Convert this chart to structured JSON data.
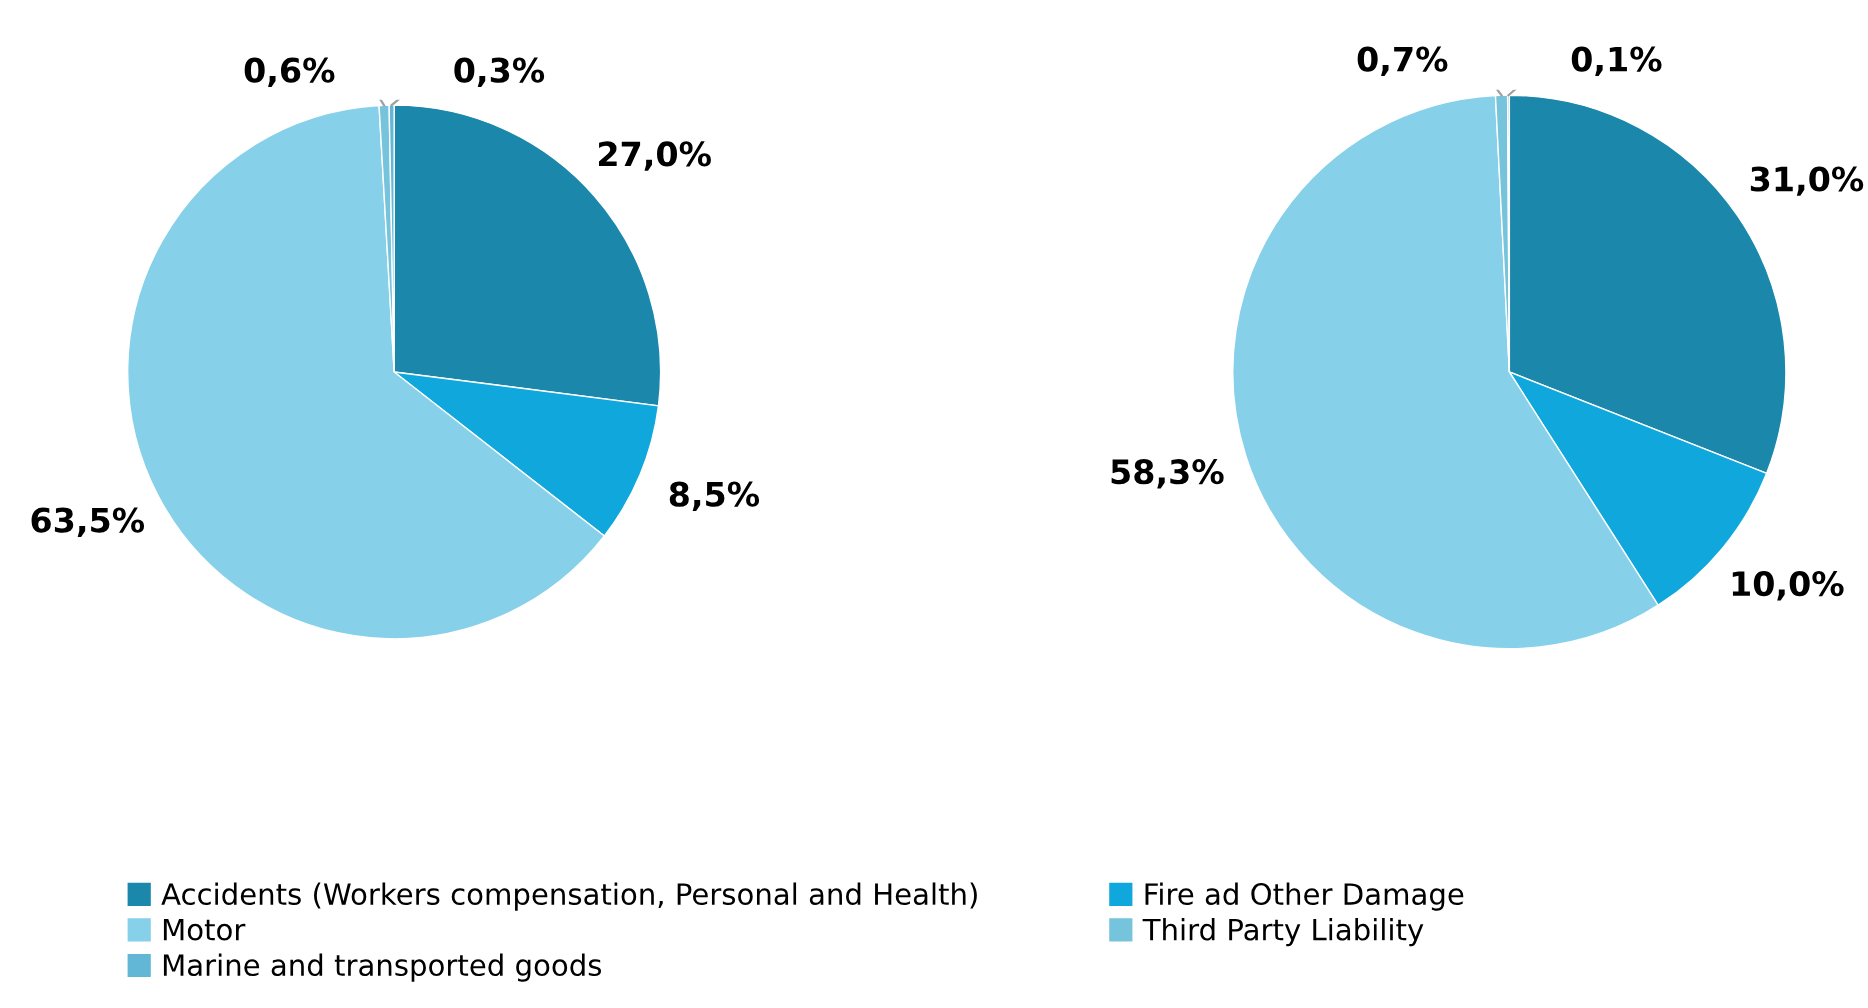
{
  "chart_data": [
    {
      "type": "pie",
      "categories": [
        "Accidents (Workers compensation, Personal and Health)",
        "Fire ad Other Damage",
        "Motor",
        "Third Party Liability",
        "Marine and transported goods"
      ],
      "values": [
        27.0,
        8.5,
        63.5,
        0.6,
        0.3
      ],
      "value_labels": [
        "27,0%",
        "8,5%",
        "63,5%",
        "0,6%",
        "0,3%"
      ],
      "colors": [
        "#1a87ab",
        "#10a8dc",
        "#86d0ea",
        "#76c3dc",
        "#62b6d6"
      ],
      "legend": "bottom"
    },
    {
      "type": "pie",
      "categories": [
        null,
        null,
        null,
        null,
        null
      ],
      "values": [
        31.0,
        10.0,
        58.3,
        0.7,
        0.1
      ],
      "value_labels": [
        "31,0%",
        "10,0%",
        "58,3%",
        "0,7%",
        "0,1%"
      ],
      "colors": [
        "#1a87ab",
        "#10a8dc",
        "#86d0ea",
        "#76c3dc",
        "#62b6d6"
      ]
    }
  ]
}
